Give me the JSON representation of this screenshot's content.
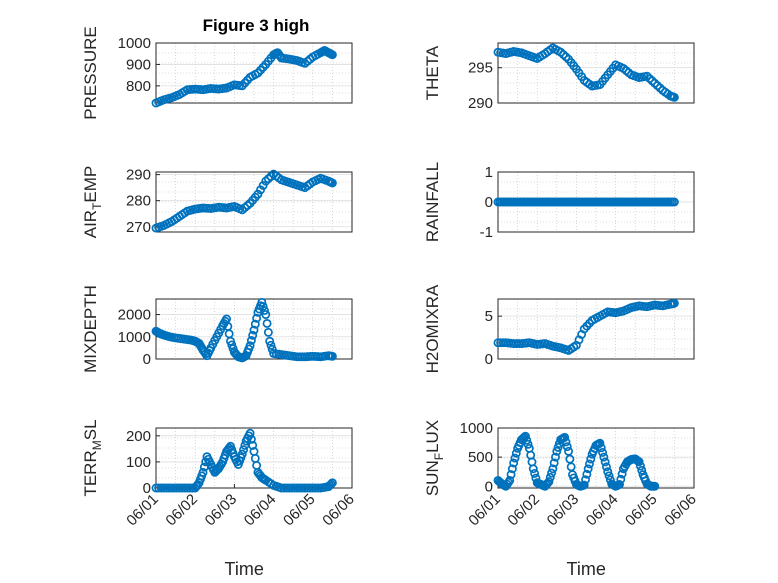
{
  "figure": {
    "title": "Figure 3 high",
    "marker_color": "#0072bd",
    "axis_color": "#262626",
    "background": "#ffffff"
  },
  "chart_data": [
    {
      "type": "scatter",
      "key": "pressure",
      "title": "Figure 3 high",
      "ylabel": "PRESSURE",
      "xlabel": "",
      "xlim": [
        0,
        5
      ],
      "ylim": [
        720,
        1000
      ],
      "yticks": [
        800,
        900,
        1000
      ],
      "xticks": [],
      "points": [
        [
          0,
          720
        ],
        [
          0.2,
          735
        ],
        [
          0.4,
          745
        ],
        [
          0.6,
          760
        ],
        [
          0.8,
          782
        ],
        [
          1.0,
          785
        ],
        [
          1.2,
          782
        ],
        [
          1.4,
          788
        ],
        [
          1.6,
          785
        ],
        [
          1.8,
          790
        ],
        [
          2.0,
          805
        ],
        [
          2.2,
          800
        ],
        [
          2.4,
          840
        ],
        [
          2.6,
          860
        ],
        [
          2.8,
          900
        ],
        [
          3.0,
          945
        ],
        [
          3.1,
          955
        ],
        [
          3.2,
          930
        ],
        [
          3.4,
          925
        ],
        [
          3.6,
          918
        ],
        [
          3.8,
          905
        ],
        [
          4.0,
          935
        ],
        [
          4.2,
          955
        ],
        [
          4.3,
          965
        ],
        [
          4.4,
          955
        ],
        [
          4.5,
          945
        ]
      ]
    },
    {
      "type": "scatter",
      "key": "theta",
      "ylabel": "THETA",
      "xlabel": "",
      "xlim": [
        0,
        5
      ],
      "ylim": [
        290,
        298.5
      ],
      "yticks": [
        290,
        295
      ],
      "xticks": [],
      "points": [
        [
          0,
          297.2
        ],
        [
          0.2,
          297.0
        ],
        [
          0.4,
          297.3
        ],
        [
          0.6,
          297.1
        ],
        [
          0.8,
          296.7
        ],
        [
          1.0,
          296.3
        ],
        [
          1.2,
          297.0
        ],
        [
          1.4,
          297.8
        ],
        [
          1.6,
          297.2
        ],
        [
          1.8,
          296.2
        ],
        [
          2.0,
          294.8
        ],
        [
          2.2,
          293.2
        ],
        [
          2.4,
          292.4
        ],
        [
          2.6,
          292.6
        ],
        [
          2.8,
          294.0
        ],
        [
          3.0,
          295.4
        ],
        [
          3.2,
          294.9
        ],
        [
          3.4,
          294.0
        ],
        [
          3.6,
          293.6
        ],
        [
          3.8,
          293.8
        ],
        [
          4.0,
          292.8
        ],
        [
          4.2,
          291.8
        ],
        [
          4.4,
          291.0
        ],
        [
          4.5,
          290.8
        ]
      ]
    },
    {
      "type": "scatter",
      "key": "air_temp",
      "ylabel_main": "AIR",
      "ylabel_sub": "T",
      "ylabel_rest": "EMP",
      "xlabel": "",
      "xlim": [
        0,
        5
      ],
      "ylim": [
        268,
        291
      ],
      "yticks": [
        270,
        280,
        290
      ],
      "xticks": [],
      "points": [
        [
          0,
          269.5
        ],
        [
          0.2,
          270.5
        ],
        [
          0.4,
          272.0
        ],
        [
          0.6,
          274.0
        ],
        [
          0.8,
          276.0
        ],
        [
          1.0,
          276.8
        ],
        [
          1.2,
          277.2
        ],
        [
          1.4,
          277.0
        ],
        [
          1.6,
          277.5
        ],
        [
          1.8,
          277.2
        ],
        [
          2.0,
          277.8
        ],
        [
          2.2,
          276.5
        ],
        [
          2.4,
          279.0
        ],
        [
          2.6,
          282.5
        ],
        [
          2.8,
          287.5
        ],
        [
          3.0,
          290.2
        ],
        [
          3.2,
          288.0
        ],
        [
          3.4,
          287.0
        ],
        [
          3.6,
          286.0
        ],
        [
          3.8,
          285.0
        ],
        [
          4.0,
          287.2
        ],
        [
          4.2,
          288.6
        ],
        [
          4.4,
          287.5
        ],
        [
          4.5,
          286.8
        ]
      ]
    },
    {
      "type": "scatter",
      "key": "rainfall",
      "ylabel": "RAINFALL",
      "xlabel": "",
      "xlim": [
        0,
        5
      ],
      "ylim": [
        -1,
        1
      ],
      "yticks": [
        -1,
        0,
        1
      ],
      "xticks": [],
      "points": [
        [
          0,
          0
        ],
        [
          0.15,
          0
        ],
        [
          0.3,
          0
        ],
        [
          0.45,
          0
        ],
        [
          0.6,
          0
        ],
        [
          0.75,
          0
        ],
        [
          0.9,
          0
        ],
        [
          1.05,
          0
        ],
        [
          1.2,
          0
        ],
        [
          1.35,
          0
        ],
        [
          1.5,
          0
        ],
        [
          1.65,
          0
        ],
        [
          1.8,
          0
        ],
        [
          1.95,
          0
        ],
        [
          2.1,
          0
        ],
        [
          2.25,
          0
        ],
        [
          2.4,
          0
        ],
        [
          2.55,
          0
        ],
        [
          2.7,
          0
        ],
        [
          2.85,
          0
        ],
        [
          3.0,
          0
        ],
        [
          3.15,
          0
        ],
        [
          3.3,
          0
        ],
        [
          3.45,
          0
        ],
        [
          3.6,
          0
        ],
        [
          3.75,
          0
        ],
        [
          3.9,
          0
        ],
        [
          4.05,
          0
        ],
        [
          4.2,
          0
        ],
        [
          4.35,
          0
        ],
        [
          4.5,
          0
        ]
      ]
    },
    {
      "type": "scatter",
      "key": "mixdepth",
      "ylabel": "MIXDEPTH",
      "xlabel": "",
      "xlim": [
        0,
        5
      ],
      "ylim": [
        0,
        2700
      ],
      "yticks": [
        0,
        1000,
        2000
      ],
      "xticks": [],
      "points": [
        [
          0,
          1250
        ],
        [
          0.1,
          1150
        ],
        [
          0.2,
          1080
        ],
        [
          0.35,
          1000
        ],
        [
          0.5,
          950
        ],
        [
          0.7,
          900
        ],
        [
          0.9,
          850
        ],
        [
          1.0,
          800
        ],
        [
          1.1,
          700
        ],
        [
          1.2,
          400
        ],
        [
          1.3,
          150
        ],
        [
          1.4,
          500
        ],
        [
          1.55,
          1000
        ],
        [
          1.7,
          1500
        ],
        [
          1.8,
          1800
        ],
        [
          1.9,
          800
        ],
        [
          2.0,
          300
        ],
        [
          2.1,
          100
        ],
        [
          2.2,
          50
        ],
        [
          2.3,
          150
        ],
        [
          2.4,
          600
        ],
        [
          2.5,
          1300
        ],
        [
          2.6,
          2100
        ],
        [
          2.7,
          2550
        ],
        [
          2.8,
          2000
        ],
        [
          2.9,
          800
        ],
        [
          3.0,
          250
        ],
        [
          3.2,
          200
        ],
        [
          3.4,
          150
        ],
        [
          3.6,
          100
        ],
        [
          3.8,
          100
        ],
        [
          4.0,
          120
        ],
        [
          4.2,
          100
        ],
        [
          4.4,
          150
        ],
        [
          4.5,
          120
        ]
      ]
    },
    {
      "type": "scatter",
      "key": "h2omixra",
      "ylabel": "H2OMIXRA",
      "xlabel": "",
      "xlim": [
        0,
        5
      ],
      "ylim": [
        0,
        7
      ],
      "yticks": [
        0,
        5
      ],
      "xticks": [],
      "points": [
        [
          0,
          1.9
        ],
        [
          0.2,
          1.9
        ],
        [
          0.4,
          1.8
        ],
        [
          0.6,
          1.8
        ],
        [
          0.8,
          1.9
        ],
        [
          1.0,
          1.7
        ],
        [
          1.2,
          1.8
        ],
        [
          1.4,
          1.5
        ],
        [
          1.6,
          1.3
        ],
        [
          1.8,
          1.0
        ],
        [
          2.0,
          1.6
        ],
        [
          2.2,
          3.5
        ],
        [
          2.4,
          4.5
        ],
        [
          2.6,
          5.0
        ],
        [
          2.8,
          5.5
        ],
        [
          3.0,
          5.4
        ],
        [
          3.2,
          5.6
        ],
        [
          3.4,
          6.0
        ],
        [
          3.6,
          6.2
        ],
        [
          3.8,
          6.1
        ],
        [
          4.0,
          6.3
        ],
        [
          4.2,
          6.2
        ],
        [
          4.4,
          6.4
        ],
        [
          4.5,
          6.5
        ]
      ]
    },
    {
      "type": "scatter",
      "key": "terr_msl",
      "ylabel_main": "TERR",
      "ylabel_sub": "M",
      "ylabel_rest": "SL",
      "xlabel": "Time",
      "xlim": [
        0,
        5
      ],
      "ylim": [
        0,
        230
      ],
      "yticks": [
        0,
        100,
        200
      ],
      "xticks": [
        0,
        1,
        2,
        3,
        4,
        5
      ],
      "xticklabels": [
        "06/01",
        "06/02",
        "06/03",
        "06/04",
        "06/05",
        "06/06"
      ],
      "points": [
        [
          0,
          0
        ],
        [
          0.2,
          0
        ],
        [
          0.4,
          0
        ],
        [
          0.6,
          0
        ],
        [
          0.8,
          0
        ],
        [
          1.0,
          0
        ],
        [
          1.1,
          20
        ],
        [
          1.2,
          60
        ],
        [
          1.3,
          120
        ],
        [
          1.4,
          90
        ],
        [
          1.5,
          60
        ],
        [
          1.6,
          75
        ],
        [
          1.7,
          100
        ],
        [
          1.8,
          140
        ],
        [
          1.9,
          160
        ],
        [
          2.0,
          120
        ],
        [
          2.1,
          90
        ],
        [
          2.2,
          130
        ],
        [
          2.3,
          180
        ],
        [
          2.4,
          210
        ],
        [
          2.5,
          140
        ],
        [
          2.6,
          60
        ],
        [
          2.7,
          40
        ],
        [
          2.8,
          30
        ],
        [
          3.0,
          10
        ],
        [
          3.2,
          0
        ],
        [
          3.4,
          0
        ],
        [
          3.6,
          0
        ],
        [
          3.8,
          0
        ],
        [
          4.0,
          0
        ],
        [
          4.2,
          0
        ],
        [
          4.4,
          5
        ],
        [
          4.5,
          20
        ]
      ]
    },
    {
      "type": "scatter",
      "key": "sun_flux",
      "ylabel_main": "SUN",
      "ylabel_sub": "F",
      "ylabel_rest": "LUX",
      "xlabel": "Time",
      "xlim": [
        0,
        5
      ],
      "ylim": [
        -30,
        1000
      ],
      "yticks": [
        0,
        500,
        1000
      ],
      "xticks": [
        0,
        1,
        2,
        3,
        4,
        5
      ],
      "xticklabels": [
        "06/01",
        "06/02",
        "06/03",
        "06/04",
        "06/05",
        "06/06"
      ],
      "points": [
        [
          0,
          100
        ],
        [
          0.1,
          40
        ],
        [
          0.2,
          0
        ],
        [
          0.3,
          100
        ],
        [
          0.4,
          400
        ],
        [
          0.5,
          650
        ],
        [
          0.6,
          800
        ],
        [
          0.7,
          860
        ],
        [
          0.8,
          650
        ],
        [
          0.9,
          300
        ],
        [
          1.0,
          60
        ],
        [
          1.1,
          30
        ],
        [
          1.2,
          0
        ],
        [
          1.3,
          80
        ],
        [
          1.4,
          300
        ],
        [
          1.5,
          600
        ],
        [
          1.6,
          800
        ],
        [
          1.7,
          840
        ],
        [
          1.8,
          600
        ],
        [
          1.9,
          200
        ],
        [
          2.0,
          30
        ],
        [
          2.1,
          0
        ],
        [
          2.2,
          20
        ],
        [
          2.3,
          300
        ],
        [
          2.4,
          550
        ],
        [
          2.5,
          700
        ],
        [
          2.6,
          740
        ],
        [
          2.7,
          500
        ],
        [
          2.8,
          250
        ],
        [
          2.9,
          40
        ],
        [
          3.0,
          0
        ],
        [
          3.1,
          30
        ],
        [
          3.2,
          300
        ],
        [
          3.3,
          420
        ],
        [
          3.4,
          460
        ],
        [
          3.5,
          470
        ],
        [
          3.6,
          420
        ],
        [
          3.7,
          200
        ],
        [
          3.8,
          40
        ],
        [
          3.9,
          0
        ],
        [
          4.0,
          0
        ]
      ]
    }
  ]
}
